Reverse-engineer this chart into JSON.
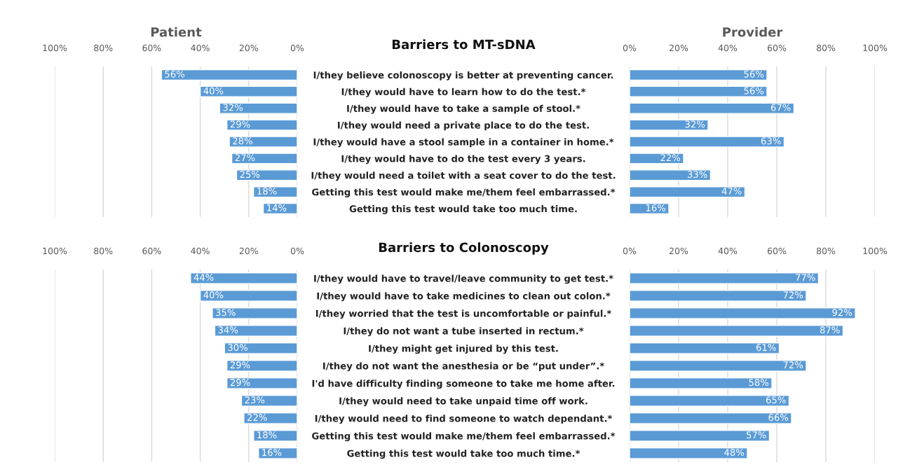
{
  "chart_data": [
    {
      "type": "bar",
      "orientation": "horizontal",
      "title": "Barriers to MT-sDNA",
      "xlabel": "Patient",
      "categories": [
        "I/they believe colonoscopy is better at preventing cancer.",
        "I/they would have to learn how to do the test.*",
        "I/they would have to take a sample of stool.*",
        "I/they would need a private place to do the test.",
        "I/they would have a stool sample in a container in home.*",
        "I/they would have to do the test every 3 years.",
        "I/they would need a toilet with a seat cover to do the test.",
        "Getting this test would make me/them feel embarrassed.*",
        "Getting this test would take too much time."
      ],
      "values": [
        56,
        40,
        32,
        29,
        28,
        27,
        25,
        18,
        14
      ],
      "value_labels": [
        "56%",
        "40%",
        "32%",
        "29%",
        "28%",
        "27%",
        "25%",
        "18%",
        "14%"
      ],
      "color": "#5b9bd5",
      "xlim": [
        100,
        0
      ],
      "xticks": [
        {
          "value": 100,
          "label": "100%"
        },
        {
          "value": 80,
          "label": "80%"
        },
        {
          "value": 60,
          "label": "60%"
        },
        {
          "value": 40,
          "label": "40%"
        },
        {
          "value": 20,
          "label": "20%"
        },
        {
          "value": 0,
          "label": "0%"
        }
      ],
      "grid": "x",
      "legend": false
    },
    {
      "type": "bar",
      "orientation": "horizontal",
      "xlabel": "Provider",
      "categories": [
        null,
        null,
        null,
        null,
        null,
        null,
        null,
        null,
        null
      ],
      "values": [
        56,
        56,
        67,
        32,
        63,
        22,
        33,
        47,
        16
      ],
      "value_labels": [
        "56%",
        "56%",
        "67%",
        "32%",
        "63%",
        "22%",
        "33%",
        "47%",
        "16%"
      ],
      "color": "#5b9bd5",
      "xlim": [
        0,
        100
      ],
      "xticks": [
        {
          "value": 0,
          "label": "0%"
        },
        {
          "value": 20,
          "label": "20%"
        },
        {
          "value": 40,
          "label": "40%"
        },
        {
          "value": 60,
          "label": "60%"
        },
        {
          "value": 80,
          "label": "80%"
        },
        {
          "value": 100,
          "label": "100%"
        }
      ],
      "grid": "x",
      "legend": false,
      "tick_labels": "x"
    },
    {
      "type": "bar",
      "orientation": "horizontal",
      "title": "Barriers to Colonoscopy",
      "categories": [
        "I/they would have to travel/leave community to get test.*",
        "I/they would have to take medicines to clean out colon.*",
        "I/they worried that the test is uncomfortable or painful.*",
        "I/they do not want a tube inserted in rectum.*",
        "I/they might get injured by this test.",
        "I/they do not want the anesthesia or be “put under”.*",
        "I'd have difficulty finding someone to take me home after.",
        "I/they would need to take unpaid time off work.",
        "I/they would need to find someone to watch dependant.*",
        "Getting this test would make me/them feel embarrassed.*",
        "Getting this test would take too much time.*"
      ],
      "values": [
        44,
        40,
        35,
        34,
        30,
        29,
        29,
        23,
        22,
        18,
        16
      ],
      "value_labels": [
        "44%",
        "40%",
        "35%",
        "34%",
        "30%",
        "29%",
        "29%",
        "23%",
        "22%",
        "18%",
        "16%"
      ],
      "color": "#5b9bd5",
      "xlim": [
        100,
        0
      ],
      "xticks": [
        {
          "value": 100,
          "label": "100%"
        },
        {
          "value": 80,
          "label": "80%"
        },
        {
          "value": 60,
          "label": "60%"
        },
        {
          "value": 40,
          "label": "40%"
        },
        {
          "value": 20,
          "label": "20%"
        },
        {
          "value": 0,
          "label": "0%"
        }
      ],
      "grid": "x",
      "legend": false
    },
    {
      "type": "bar",
      "orientation": "horizontal",
      "categories": [
        null,
        null,
        null,
        null,
        null,
        null,
        null,
        null,
        null,
        null,
        null
      ],
      "values": [
        77,
        72,
        92,
        87,
        61,
        72,
        58,
        65,
        66,
        57,
        48
      ],
      "value_labels": [
        "77%",
        "72%",
        "92%",
        "87%",
        "61%",
        "72%",
        "58%",
        "65%",
        "66%",
        "57%",
        "48%"
      ],
      "color": "#5b9bd5",
      "xlim": [
        0,
        100
      ],
      "xticks": [
        {
          "value": 0,
          "label": "0%"
        },
        {
          "value": 20,
          "label": "20%"
        },
        {
          "value": 40,
          "label": "40%"
        },
        {
          "value": 60,
          "label": "60%"
        },
        {
          "value": 80,
          "label": "80%"
        },
        {
          "value": 100,
          "label": "100%"
        }
      ],
      "grid": "x",
      "legend": false,
      "tick_labels": "x"
    }
  ]
}
